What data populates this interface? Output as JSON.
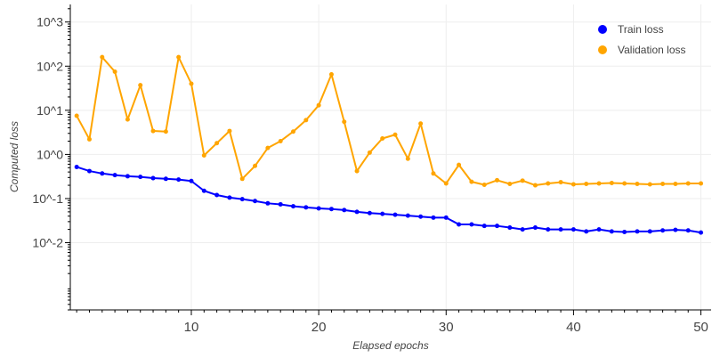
{
  "chart_data": {
    "type": "line",
    "xlabel": "Elapsed epochs",
    "ylabel": "Computed loss",
    "xlim": [
      0.5,
      50.8
    ],
    "ylim": [
      0.0003,
      2500
    ],
    "yscale": "log",
    "grid": true,
    "legend_position": "top-right",
    "x_ticks": [
      10,
      20,
      30,
      40,
      50
    ],
    "y_ticks": [
      {
        "value": 0.01,
        "label": "10^-2"
      },
      {
        "value": 0.1,
        "label": "10^-1"
      },
      {
        "value": 1,
        "label": "10^0"
      },
      {
        "value": 10,
        "label": "10^1"
      },
      {
        "value": 100,
        "label": "10^2"
      },
      {
        "value": 1000,
        "label": "10^3"
      }
    ],
    "x": [
      1,
      2,
      3,
      4,
      5,
      6,
      7,
      8,
      9,
      10,
      11,
      12,
      13,
      14,
      15,
      16,
      17,
      18,
      19,
      20,
      21,
      22,
      23,
      24,
      25,
      26,
      27,
      28,
      29,
      30,
      31,
      32,
      33,
      34,
      35,
      36,
      37,
      38,
      39,
      40,
      41,
      42,
      43,
      44,
      45,
      46,
      47,
      48,
      49,
      50
    ],
    "series": [
      {
        "name": "Train loss",
        "color": "#0000ff",
        "values": [
          0.52,
          0.42,
          0.37,
          0.34,
          0.32,
          0.31,
          0.29,
          0.28,
          0.27,
          0.25,
          0.15,
          0.12,
          0.105,
          0.097,
          0.088,
          0.078,
          0.074,
          0.067,
          0.063,
          0.06,
          0.058,
          0.055,
          0.05,
          0.047,
          0.045,
          0.043,
          0.041,
          0.039,
          0.037,
          0.037,
          0.026,
          0.026,
          0.024,
          0.024,
          0.022,
          0.02,
          0.022,
          0.02,
          0.02,
          0.02,
          0.018,
          0.02,
          0.018,
          0.0175,
          0.018,
          0.018,
          0.019,
          0.0195,
          0.019,
          0.017
        ]
      },
      {
        "name": "Validation loss",
        "color": "#ffa500",
        "values": [
          7.5,
          2.2,
          160,
          75,
          6.2,
          37,
          3.4,
          3.3,
          160,
          40,
          0.95,
          1.8,
          3.4,
          0.28,
          0.55,
          1.4,
          2.0,
          3.3,
          6.0,
          13,
          65,
          5.5,
          0.42,
          1.1,
          2.3,
          2.8,
          0.8,
          5.0,
          0.37,
          0.22,
          0.58,
          0.24,
          0.205,
          0.26,
          0.215,
          0.255,
          0.2,
          0.22,
          0.235,
          0.21,
          0.215,
          0.22,
          0.225,
          0.22,
          0.215,
          0.21,
          0.215,
          0.215,
          0.22,
          0.22
        ]
      }
    ]
  }
}
